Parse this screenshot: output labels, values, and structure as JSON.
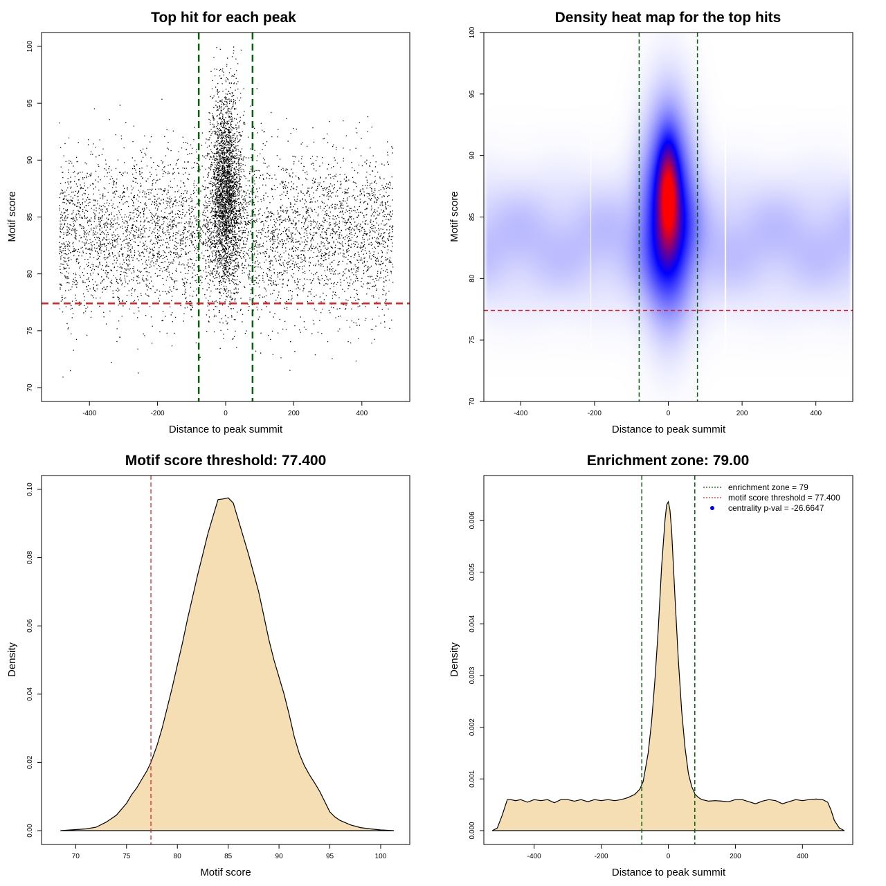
{
  "colors": {
    "points": "#000000",
    "green_line": "#006400",
    "red_line": "#e02020",
    "fill": "#f5deb3",
    "heat_low": "#ffffff",
    "heat_mid": "#0000ff",
    "heat_high": "#ff0000",
    "legend_point": "#0000ff"
  },
  "chart_data": [
    {
      "type": "scatter",
      "title": "Top hit for each peak",
      "xlabel": "Distance to peak summit",
      "ylabel": "Motif score",
      "xlim": [
        -500,
        500
      ],
      "ylim": [
        70,
        100
      ],
      "xticks": [
        -400,
        -200,
        0,
        200,
        400
      ],
      "xtick_labels": [
        "-400",
        "-200",
        "0",
        "200",
        "400"
      ],
      "yticks": [
        70,
        75,
        80,
        85,
        90,
        95,
        100
      ],
      "ytick_labels": [
        "70",
        "75",
        "80",
        "85",
        "90",
        "95",
        "100"
      ],
      "vlines": [
        -79,
        79
      ],
      "hline": 77.4,
      "background_distribution": {
        "x_range": [
          -490,
          490
        ],
        "y_mean": 83.5,
        "y_sd": 3.6
      },
      "central_distribution": {
        "x_sd": 22,
        "y_mean": 87.5,
        "y_sd": 4.2
      },
      "n_background_points": 5200,
      "n_central_points": 4200
    },
    {
      "type": "heatmap",
      "title": "Density heat map for the top hits",
      "xlabel": "Distance to peak summit",
      "ylabel": "Motif score",
      "xlim": [
        -500,
        500
      ],
      "ylim": [
        70,
        100
      ],
      "xticks": [
        -400,
        -200,
        0,
        200,
        400
      ],
      "xtick_labels": [
        "-400",
        "-200",
        "0",
        "200",
        "400"
      ],
      "yticks": [
        70,
        75,
        80,
        85,
        90,
        95,
        100
      ],
      "ytick_labels": [
        "70",
        "75",
        "80",
        "85",
        "90",
        "95",
        "100"
      ],
      "vlines": [
        -79,
        79
      ],
      "hline": 77.4,
      "hotspot": {
        "x": 0,
        "y": 87,
        "sx": 18,
        "sy": 2.8
      },
      "core": {
        "x": 0,
        "y": 85.5,
        "sx": 45,
        "sy": 5.5
      },
      "background_band": {
        "y": 83,
        "sy": 3.5,
        "x_range": [
          -490,
          490
        ]
      },
      "stripes": [
        -210,
        155
      ]
    },
    {
      "type": "area",
      "title": "Motif score threshold: 77.400",
      "xlabel": "Motif score",
      "ylabel": "Density",
      "xlim": [
        68,
        101.5
      ],
      "ylim": [
        0,
        0.1
      ],
      "xticks": [
        70,
        75,
        80,
        85,
        90,
        95,
        100
      ],
      "xtick_labels": [
        "70",
        "75",
        "80",
        "85",
        "90",
        "95",
        "100"
      ],
      "yticks": [
        0,
        0.02,
        0.04,
        0.06,
        0.08,
        0.1
      ],
      "ytick_labels": [
        "0.00",
        "0.02",
        "0.04",
        "0.06",
        "0.08",
        "0.10"
      ],
      "vline": 77.4,
      "x": [
        68.5,
        70,
        71,
        72,
        73,
        74,
        75,
        75.5,
        76,
        76.5,
        77,
        77.4,
        78,
        78.5,
        79,
        79.5,
        80,
        80.5,
        81,
        81.5,
        82,
        82.5,
        83,
        83.5,
        84,
        84.5,
        85,
        85.5,
        86,
        86.5,
        87,
        87.5,
        88,
        88.5,
        89,
        89.5,
        90,
        90.5,
        91,
        91.5,
        92,
        92.5,
        93,
        93.5,
        94,
        94.5,
        95,
        95.5,
        96,
        97,
        98,
        99,
        100,
        101.3
      ],
      "y": [
        0.0,
        0.0003,
        0.0005,
        0.001,
        0.0025,
        0.0045,
        0.008,
        0.0105,
        0.0125,
        0.015,
        0.0175,
        0.02,
        0.025,
        0.03,
        0.036,
        0.042,
        0.0485,
        0.055,
        0.062,
        0.0685,
        0.075,
        0.081,
        0.087,
        0.092,
        0.097,
        0.0972,
        0.0975,
        0.096,
        0.091,
        0.086,
        0.081,
        0.0755,
        0.07,
        0.063,
        0.056,
        0.05,
        0.045,
        0.04,
        0.034,
        0.0275,
        0.0225,
        0.019,
        0.0163,
        0.014,
        0.0115,
        0.0085,
        0.0055,
        0.004,
        0.003,
        0.0017,
        0.0009,
        0.0005,
        0.0002,
        0.0
      ]
    },
    {
      "type": "area",
      "title": "Enrichment zone: 79.00",
      "xlabel": "Distance to peak summit",
      "ylabel": "Density",
      "xlim": [
        -550,
        550
      ],
      "ylim": [
        0,
        0.0066
      ],
      "xticks": [
        -400,
        -200,
        0,
        200,
        400
      ],
      "xtick_labels": [
        "-400",
        "-200",
        "0",
        "200",
        "400"
      ],
      "yticks": [
        0,
        0.001,
        0.002,
        0.003,
        0.004,
        0.005,
        0.006
      ],
      "ytick_labels": [
        "0.000",
        "0.001",
        "0.002",
        "0.003",
        "0.004",
        "0.005",
        "0.006"
      ],
      "vlines": [
        -79,
        79
      ],
      "x": [
        -525,
        -510,
        -495,
        -480,
        -470,
        -455,
        -440,
        -420,
        -400,
        -380,
        -360,
        -340,
        -320,
        -300,
        -280,
        -260,
        -240,
        -220,
        -200,
        -180,
        -160,
        -140,
        -120,
        -100,
        -85,
        -75,
        -60,
        -50,
        -40,
        -30,
        -20,
        -10,
        -5,
        0,
        5,
        10,
        20,
        30,
        40,
        50,
        60,
        70,
        80,
        90,
        100,
        120,
        140,
        160,
        180,
        200,
        220,
        240,
        260,
        280,
        300,
        320,
        340,
        360,
        380,
        400,
        420,
        440,
        460,
        475,
        485,
        495,
        510,
        525
      ],
      "y": [
        0.0,
        5e-05,
        0.0003,
        0.0006,
        0.0006,
        0.00058,
        0.0006,
        0.00055,
        0.0006,
        0.00058,
        0.0006,
        0.00054,
        0.0006,
        0.0006,
        0.00057,
        0.0006,
        0.00056,
        0.0006,
        0.00058,
        0.0006,
        0.00058,
        0.0006,
        0.00064,
        0.0007,
        0.0008,
        0.00095,
        0.0015,
        0.0021,
        0.0029,
        0.0039,
        0.0051,
        0.006,
        0.0063,
        0.00636,
        0.0062,
        0.0058,
        0.0045,
        0.0033,
        0.0023,
        0.0016,
        0.0011,
        0.00085,
        0.0007,
        0.00064,
        0.0006,
        0.00057,
        0.00058,
        0.00057,
        0.00056,
        0.0006,
        0.0006,
        0.00056,
        0.00052,
        0.00057,
        0.0006,
        0.00058,
        0.00052,
        0.00056,
        0.0006,
        0.00058,
        0.0006,
        0.00061,
        0.0006,
        0.00055,
        0.0004,
        0.0002,
        5e-05,
        0.0
      ],
      "legend": {
        "position": "top-right",
        "items": [
          {
            "label": "enrichment zone = 79",
            "style": "dotted",
            "color": "#006400"
          },
          {
            "label": "motif score threshold = 77.400",
            "style": "dotted",
            "color": "#e02020"
          },
          {
            "label": "centrality p-val = -26.6647",
            "style": "point",
            "color": "#0000ff"
          }
        ]
      }
    }
  ]
}
